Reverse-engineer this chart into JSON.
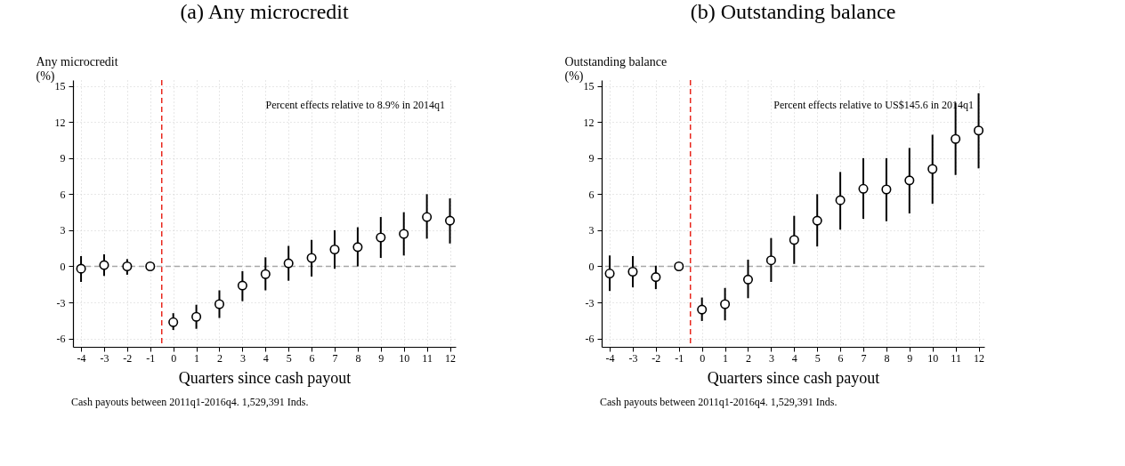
{
  "chart_data": [
    {
      "type": "scatter",
      "title": "(a) Any microcredit",
      "xlabel": "Quarters since cash payout",
      "ylabel": "Any microcredit (%)",
      "x": [
        -4,
        -3,
        -2,
        -1,
        0,
        1,
        2,
        3,
        4,
        5,
        6,
        7,
        8,
        9,
        10,
        11,
        12
      ],
      "series": [
        {
          "color": "#000000",
          "values": [
            -0.2,
            0.1,
            0,
            0,
            -4.65,
            -4.2,
            -3.15,
            -1.6,
            -0.65,
            0.25,
            0.7,
            1.4,
            1.6,
            2.4,
            2.7,
            4.1,
            3.8
          ],
          "errors": [
            [
              -1.3,
              0.85
            ],
            [
              -0.8,
              1.0
            ],
            [
              -0.7,
              0.6
            ],
            null,
            [
              -5.3,
              -3.9
            ],
            [
              -5.2,
              -3.2
            ],
            [
              -4.3,
              -2.0
            ],
            [
              -2.9,
              -0.4
            ],
            [
              -2.0,
              0.75
            ],
            [
              -1.2,
              1.7
            ],
            [
              -0.85,
              2.2
            ],
            [
              -0.2,
              3.0
            ],
            [
              0,
              3.25
            ],
            [
              0.7,
              4.1
            ],
            [
              0.9,
              4.5
            ],
            [
              2.3,
              6.0
            ],
            [
              1.9,
              5.65
            ]
          ]
        }
      ],
      "xlim": [
        -4.35,
        12.25
      ],
      "xticks": [
        -4,
        -3,
        -2,
        -1,
        0,
        1,
        2,
        3,
        4,
        5,
        6,
        7,
        8,
        9,
        10,
        11,
        12
      ],
      "ylim": [
        -6.7,
        15.5
      ],
      "yticks": [
        -6,
        -3,
        0,
        3,
        6,
        9,
        12,
        15
      ],
      "grid": true,
      "marker": "circle",
      "ref_lines": [
        {
          "axis": "x",
          "value": -0.5,
          "color": "#e8261c",
          "line_style": "dashed"
        },
        {
          "axis": "y",
          "value": 0,
          "color": "#a6a6a6",
          "line_style": "dashed"
        }
      ],
      "annotations": [
        "Percent effects relative to 8.9% in 2014q1",
        "Cash payouts between 2011q1-2016q4. 1,529,391 Inds."
      ]
    },
    {
      "type": "scatter",
      "title": "(b) Outstanding balance",
      "xlabel": "Quarters since cash payout",
      "ylabel": "Outstanding balance (%)",
      "x": [
        -4,
        -3,
        -2,
        -1,
        0,
        1,
        2,
        3,
        4,
        5,
        6,
        7,
        8,
        9,
        10,
        11,
        12
      ],
      "series": [
        {
          "color": "#000000",
          "values": [
            -0.6,
            -0.45,
            -0.9,
            0,
            -3.6,
            -3.15,
            -1.1,
            0.5,
            2.2,
            3.8,
            5.5,
            6.45,
            6.4,
            7.15,
            8.1,
            10.6,
            11.3
          ],
          "errors": [
            [
              -2.05,
              0.9
            ],
            [
              -1.75,
              0.85
            ],
            [
              -1.9,
              0.05
            ],
            null,
            [
              -4.55,
              -2.6
            ],
            [
              -4.5,
              -1.8
            ],
            [
              -2.65,
              0.55
            ],
            [
              -1.3,
              2.35
            ],
            [
              0.2,
              4.2
            ],
            [
              1.65,
              6.0
            ],
            [
              3.05,
              7.85
            ],
            [
              3.95,
              9.0
            ],
            [
              3.75,
              9.0
            ],
            [
              4.4,
              9.85
            ],
            [
              5.2,
              10.95
            ],
            [
              7.6,
              13.6
            ],
            [
              8.15,
              14.4
            ]
          ]
        }
      ],
      "xlim": [
        -4.35,
        12.25
      ],
      "xticks": [
        -4,
        -3,
        -2,
        -1,
        0,
        1,
        2,
        3,
        4,
        5,
        6,
        7,
        8,
        9,
        10,
        11,
        12
      ],
      "ylim": [
        -6.7,
        15.5
      ],
      "yticks": [
        -6,
        -3,
        0,
        3,
        6,
        9,
        12,
        15
      ],
      "grid": true,
      "marker": "circle",
      "ref_lines": [
        {
          "axis": "x",
          "value": -0.5,
          "color": "#e8261c",
          "line_style": "dashed"
        },
        {
          "axis": "y",
          "value": 0,
          "color": "#a6a6a6",
          "line_style": "dashed"
        }
      ],
      "annotations": [
        "Percent effects relative to US$145.6 in 2014q1",
        "Cash payouts between 2011q1-2016q4. 1,529,391 Inds."
      ]
    }
  ]
}
